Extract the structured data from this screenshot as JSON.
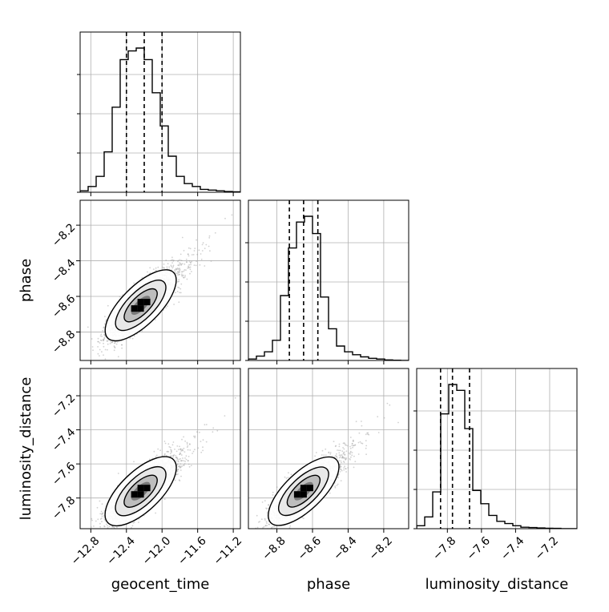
{
  "chart_data": {
    "type": "corner",
    "parameters": [
      "geocent_time",
      "phase",
      "luminosity_distance"
    ],
    "axis_labels": {
      "x": [
        "geocent_time",
        "phase",
        "luminosity_distance"
      ],
      "y": [
        "phase",
        "luminosity_distance"
      ]
    },
    "ranges": {
      "geocent_time": [
        -12.92,
        -11.12
      ],
      "phase": [
        -8.96,
        -8.06
      ],
      "luminosity_distance": [
        -7.98,
        -7.04
      ]
    },
    "ticks": {
      "geocent_time": {
        "values": [
          -12.8,
          -12.4,
          -12.0,
          -11.6,
          -11.2
        ],
        "labels": [
          "−12.8",
          "−12.4",
          "−12.0",
          "−11.6",
          "−11.2"
        ]
      },
      "phase": {
        "values": [
          -8.8,
          -8.6,
          -8.4,
          -8.2
        ],
        "labels": [
          "−8.8",
          "−8.6",
          "−8.4",
          "−8.2"
        ]
      },
      "luminosity_distance": {
        "values": [
          -7.8,
          -7.6,
          -7.4,
          -7.2
        ],
        "labels": [
          "−7.8",
          "−7.6",
          "−7.4",
          "−7.2"
        ]
      }
    },
    "quantiles": {
      "geocent_time": [
        -12.4,
        -12.2,
        -12.0
      ],
      "phase": [
        -8.73,
        -8.65,
        -8.57
      ],
      "luminosity_distance": [
        -7.84,
        -7.77,
        -7.67
      ]
    },
    "histograms": {
      "geocent_time": {
        "edges_start": -12.92,
        "bin_width": 0.09,
        "heights": [
          0.01,
          0.04,
          0.11,
          0.28,
          0.59,
          0.92,
          0.98,
          1.0,
          0.92,
          0.69,
          0.46,
          0.25,
          0.11,
          0.06,
          0.04,
          0.02,
          0.015,
          0.01,
          0.005,
          0.003
        ]
      },
      "phase": {
        "edges_start": -8.96,
        "bin_width": 0.045,
        "heights": [
          0.01,
          0.03,
          0.06,
          0.14,
          0.45,
          0.78,
          0.96,
          1.0,
          0.88,
          0.44,
          0.22,
          0.1,
          0.06,
          0.04,
          0.025,
          0.015,
          0.01,
          0.004,
          0.002,
          0.0
        ]
      },
      "luminosity_distance": {
        "edges_start": -7.98,
        "bin_width": 0.047,
        "heights": [
          0.02,
          0.08,
          0.25,
          0.78,
          0.98,
          0.94,
          0.68,
          0.26,
          0.17,
          0.09,
          0.05,
          0.035,
          0.02,
          0.01,
          0.008,
          0.005,
          0.003,
          0.002,
          0.0,
          0.0
        ]
      }
    },
    "joint": {
      "geocent_time_vs_phase": {
        "mean": [
          -12.24,
          -8.65
        ],
        "sd": [
          0.18,
          0.09
        ],
        "rho": 0.82
      },
      "geocent_time_vs_luminosity_distance": {
        "mean": [
          -12.24,
          -7.76
        ],
        "sd": [
          0.18,
          0.09
        ],
        "rho": 0.8
      },
      "phase_vs_luminosity_distance": {
        "mean": [
          -8.65,
          -7.76
        ],
        "sd": [
          0.09,
          0.09
        ],
        "rho": 0.82
      }
    },
    "grid": true,
    "quantile_line_style": "dashed",
    "colors": {
      "hist": "#000000",
      "scatter": "#9a9a9a",
      "grid": "#b0b0b0",
      "density_dark": "#000000"
    }
  }
}
